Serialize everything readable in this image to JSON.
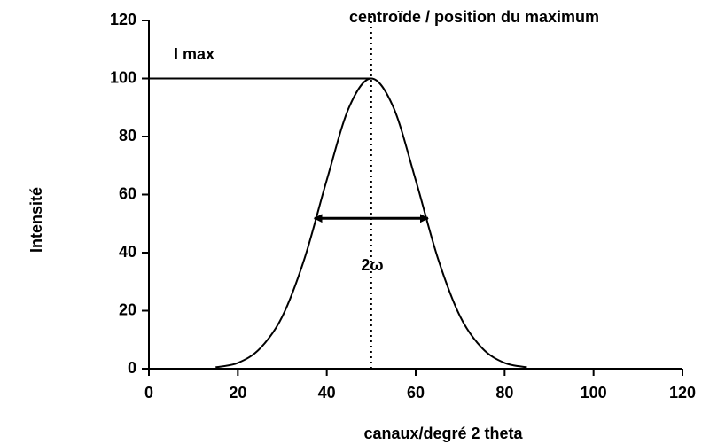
{
  "chart_data": {
    "type": "line",
    "xlabel": "canaux/degré 2 theta",
    "ylabel": "Intensité",
    "annotations": [
      "centroïde / position du maximum",
      "I max",
      "2ω"
    ],
    "x": [
      15,
      20,
      25,
      30,
      35,
      40,
      45,
      50,
      55,
      60,
      65,
      70,
      75,
      80,
      85
    ],
    "series": [
      {
        "color": "#000000",
        "values": [
          0.5,
          2,
          7,
          18,
          38,
          65,
          90,
          100,
          90,
          65,
          38,
          18,
          7,
          2,
          0.5
        ]
      }
    ],
    "xlim": [
      0,
      120
    ],
    "xticks": [
      0,
      20,
      40,
      60,
      80,
      100,
      120
    ],
    "ylim": [
      0,
      120
    ],
    "yticks": [
      0,
      20,
      40,
      60,
      80,
      100,
      120
    ],
    "grid": false
  }
}
